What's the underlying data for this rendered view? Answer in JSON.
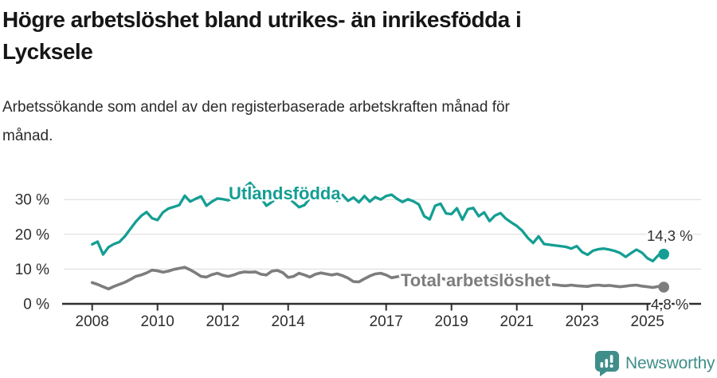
{
  "header": {
    "title": "Högre arbetslöshet bland utrikes- än inrikesfödda i Lycksele",
    "title_lines": [
      "Högre arbetslöshet bland utrikes- än inrikesfödda i",
      "Lycksele"
    ],
    "subtitle": "Arbetssökande som andel av den registerbaserade arbetskraften månad för månad.",
    "subtitle_lines": [
      "Arbetssökande som andel av den registerbaserade arbetskraften månad för",
      "månad."
    ]
  },
  "chart_data": {
    "type": "line",
    "title": "Högre arbetslöshet bland utrikes- än inrikesfödda i Lycksele",
    "subtitle": "Arbetssökande som andel av den registerbaserade arbetskraften månad för månad.",
    "xlabel": "",
    "ylabel": "",
    "grid": "horizontal",
    "legend": "inline-labels",
    "x_start": 2008,
    "x_step_years": 0.1667,
    "x_end": 2025.5,
    "ylim": [
      0,
      35
    ],
    "yticks": [
      {
        "value": 0,
        "label": "0 %"
      },
      {
        "value": 10,
        "label": "10 %"
      },
      {
        "value": 20,
        "label": "20 %"
      },
      {
        "value": 30,
        "label": "30 %"
      }
    ],
    "xticks": [
      {
        "value": 2008,
        "label": "2008"
      },
      {
        "value": 2010,
        "label": "2010"
      },
      {
        "value": 2012,
        "label": "2012"
      },
      {
        "value": 2014,
        "label": "2014"
      },
      {
        "value": 2017,
        "label": "2017"
      },
      {
        "value": 2019,
        "label": "2019"
      },
      {
        "value": 2021,
        "label": "2021"
      },
      {
        "value": 2023,
        "label": "2023"
      },
      {
        "value": 2025,
        "label": "2025"
      }
    ],
    "series": [
      {
        "name": "Utlandsfödda",
        "color": "#149e93",
        "end_value": 14.3,
        "end_label": "14,3 %",
        "values": [
          17.1,
          17.9,
          14.2,
          16.3,
          17.2,
          17.8,
          19.4,
          21.5,
          23.6,
          25.3,
          26.4,
          24.6,
          24.1,
          26.3,
          27.4,
          27.9,
          28.4,
          31.1,
          29.4,
          30.2,
          30.9,
          28.2,
          29.4,
          30.3,
          30.1,
          29.8,
          30.4,
          31.5,
          33.5,
          34.8,
          33.0,
          30.5,
          28.2,
          29.3,
          30.6,
          31.4,
          30.6,
          29.2,
          27.8,
          28.4,
          30.4,
          31.8,
          32.8,
          33.2,
          31.0,
          29.6,
          31.3,
          29.6,
          30.6,
          29.2,
          31.0,
          29.4,
          30.7,
          30.0,
          31.0,
          31.4,
          30.2,
          29.3,
          30.1,
          29.5,
          28.6,
          25.2,
          24.3,
          28.2,
          28.8,
          26.0,
          25.8,
          27.5,
          24.2,
          27.2,
          27.6,
          25.2,
          26.3,
          23.8,
          25.4,
          26.1,
          24.5,
          23.4,
          22.4,
          21.0,
          19.0,
          17.5,
          19.4,
          17.2,
          17.0,
          16.8,
          16.6,
          16.4,
          15.9,
          16.6,
          14.9,
          14.1,
          15.3,
          15.7,
          15.9,
          15.6,
          15.2,
          14.6,
          13.5,
          14.6,
          15.6,
          14.7,
          13.1,
          12.3,
          14.0,
          14.3
        ]
      },
      {
        "name": "Total arbetslöshet",
        "color": "#7d7d7d",
        "end_value": 4.8,
        "end_label": "4,8 %",
        "values": [
          6.1,
          5.6,
          4.9,
          4.3,
          5.0,
          5.6,
          6.2,
          7.0,
          7.9,
          8.3,
          8.9,
          9.7,
          9.5,
          9.1,
          9.4,
          9.9,
          10.2,
          10.5,
          9.8,
          8.9,
          7.9,
          7.7,
          8.4,
          8.8,
          8.2,
          7.9,
          8.3,
          8.9,
          9.2,
          9.1,
          9.2,
          8.5,
          8.3,
          9.4,
          9.6,
          9.0,
          7.6,
          7.9,
          8.8,
          8.3,
          7.7,
          8.5,
          8.9,
          8.6,
          8.3,
          8.6,
          8.1,
          7.4,
          6.4,
          6.3,
          7.2,
          8.0,
          8.6,
          8.8,
          8.3,
          7.5,
          7.8,
          8.1,
          8.3,
          7.9,
          7.5,
          7.1,
          6.9,
          7.2,
          7.4,
          7.0,
          6.8,
          7.1,
          6.7,
          6.9,
          7.2,
          7.0,
          7.3,
          7.7,
          8.1,
          7.9,
          7.5,
          7.2,
          6.9,
          6.5,
          6.1,
          5.9,
          6.0,
          5.7,
          5.6,
          5.5,
          5.3,
          5.2,
          5.4,
          5.2,
          5.1,
          5.0,
          5.3,
          5.4,
          5.2,
          5.3,
          5.1,
          4.9,
          5.1,
          5.3,
          5.4,
          5.1,
          4.9,
          4.7,
          5.0,
          4.8
        ]
      }
    ]
  },
  "footer": {
    "brand": "Newsworthy",
    "brand_color": "#3f8e8a",
    "logo_icon": "bar-chart-speech-bubble"
  }
}
